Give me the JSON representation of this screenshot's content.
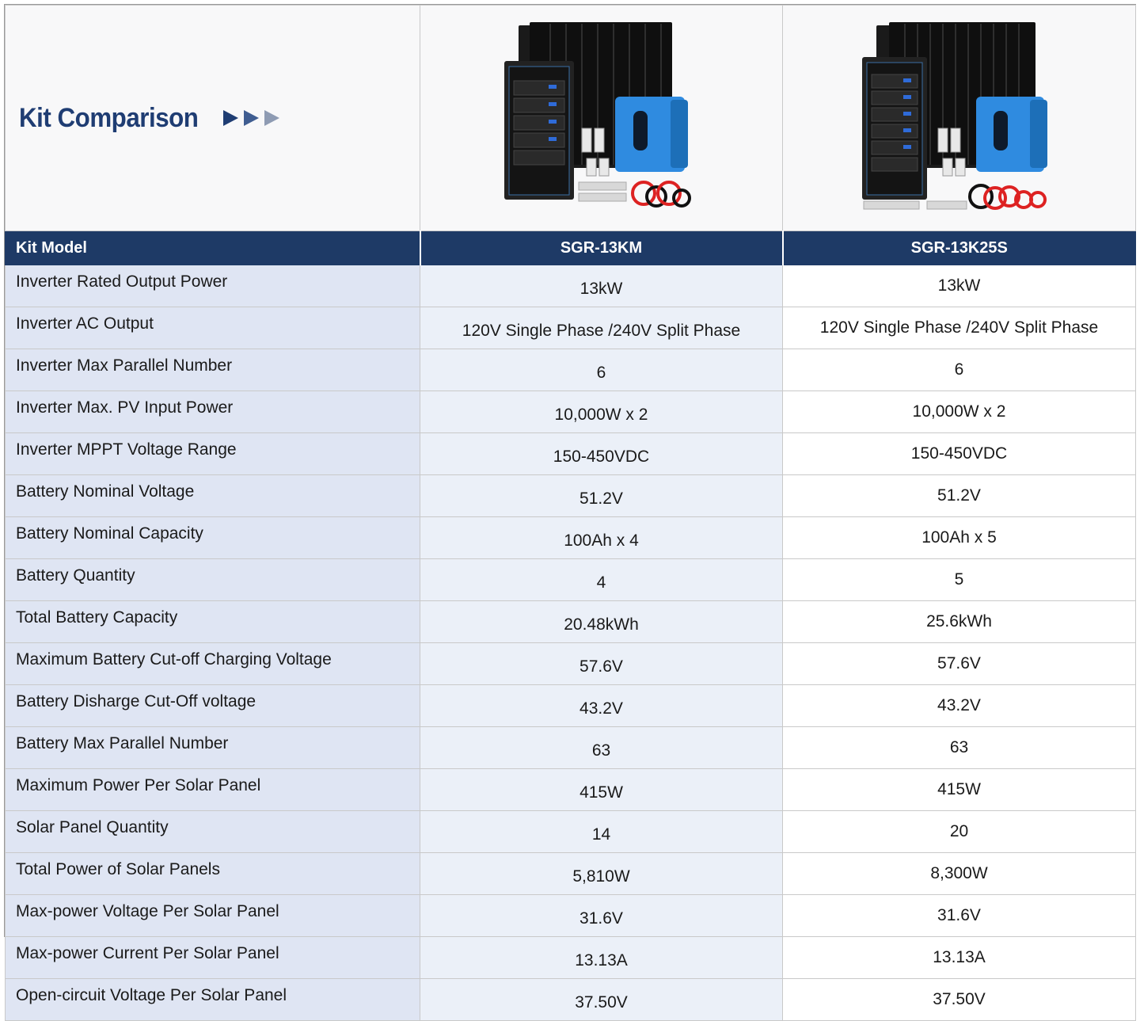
{
  "title": "Kit Comparison",
  "colors": {
    "accent": "#1e3a66",
    "label_bg": "#dfe5f3",
    "value_bg": "#ebf0f8"
  },
  "header": {
    "model_label": "Kit Model",
    "models": [
      "SGR-13KM",
      "SGR-13K25S"
    ]
  },
  "rows": [
    {
      "label": "Inverter Rated Output Power",
      "values": [
        "13kW",
        "13kW"
      ]
    },
    {
      "label": "Inverter AC Output",
      "values": [
        "120V Single Phase /240V Split Phase",
        "120V Single Phase /240V Split Phase"
      ]
    },
    {
      "label": "Inverter Max Parallel Number",
      "values": [
        "6",
        "6"
      ]
    },
    {
      "label": "Inverter Max. PV Input Power",
      "values": [
        "10,000W x 2",
        "10,000W x 2"
      ]
    },
    {
      "label": "Inverter MPPT Voltage Range",
      "values": [
        "150-450VDC",
        "150-450VDC"
      ]
    },
    {
      "label": "Battery Nominal Voltage",
      "values": [
        "51.2V",
        "51.2V"
      ]
    },
    {
      "label": "Battery Nominal Capacity",
      "values": [
        "100Ah x 4",
        "100Ah x 5"
      ]
    },
    {
      "label": "Battery Quantity",
      "values": [
        "4",
        "5"
      ]
    },
    {
      "label": "Total Battery Capacity",
      "values": [
        "20.48kWh",
        "25.6kWh"
      ]
    },
    {
      "label": "Maximum Battery Cut-off  Charging Voltage",
      "values": [
        "57.6V",
        "57.6V"
      ]
    },
    {
      "label": "Battery Disharge Cut-Off voltage",
      "values": [
        "43.2V",
        "43.2V"
      ]
    },
    {
      "label": "Battery Max Parallel Number",
      "values": [
        "63",
        "63"
      ]
    },
    {
      "label": "Maximum Power Per Solar Panel",
      "values": [
        "415W",
        "415W"
      ]
    },
    {
      "label": "Solar Panel Quantity",
      "values": [
        "14",
        "20"
      ]
    },
    {
      "label": "Total Power of  Solar Panels",
      "values": [
        "5,810W",
        "8,300W"
      ]
    },
    {
      "label": "Max-power Voltage Per Solar Panel",
      "values": [
        "31.6V",
        "31.6V"
      ]
    },
    {
      "label": "Max-power Current Per Solar Panel",
      "values": [
        "13.13A",
        "13.13A"
      ]
    },
    {
      "label": "Open-circuit Voltage Per Solar Panel",
      "values": [
        "37.50V",
        "37.50V"
      ]
    }
  ]
}
